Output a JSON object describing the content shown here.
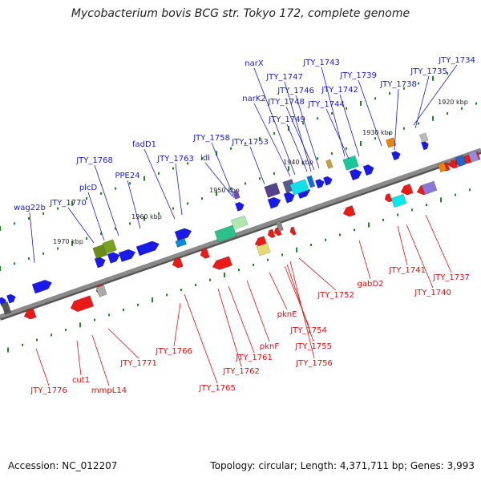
{
  "title": "Mycobacterium bovis BCG str. Tokyo 172, complete genome",
  "accession_text": "Accession: NC_012207",
  "summary_text": "Topology: circular; Length: 4,371,711 bp; Genes: 3,993",
  "kbp_labels": [
    "1920 kbp",
    "1930 kbp",
    "1940 kbp",
    "1950 kbp",
    "1960 kbp",
    "1970 kbp"
  ],
  "upper_gene_labels": [
    "narX",
    "JTY_1743",
    "JTY_1734",
    "JTY_1747",
    "JTY_1739",
    "JTY_1735",
    "JTY_1746",
    "JTY_1742",
    "JTY_1738",
    "narK2",
    "JTY_1748",
    "JTY_1744",
    "JTY_1749",
    "fadD1",
    "JTY_1758",
    "JTY_1753",
    "JTY_1768",
    "JTY_1763",
    "idi",
    "PPE24",
    "plcD",
    "JTY_1770",
    "wag22b"
  ],
  "lower_gene_labels": [
    "gabD2",
    "JTY_1741",
    "JTY_1737",
    "JTY_1740",
    "JTY_1752",
    "pknE",
    "JTY_1754",
    "JTY_1755",
    "JTY_1756",
    "pknF",
    "JTY_1761",
    "JTY_1762",
    "JTY_1765",
    "JTY_1766",
    "JTY_1771",
    "cut1",
    "mmpL14",
    "JTY_1776"
  ],
  "colors": {
    "upper_label": "#1b1bd0",
    "lower_label": "#dd1111",
    "backbone": "#8a8a8a",
    "scale_ticks": "#1f8a1f",
    "forward_gene": "#1a1ae8",
    "reverse_gene": "#e81a1a"
  }
}
